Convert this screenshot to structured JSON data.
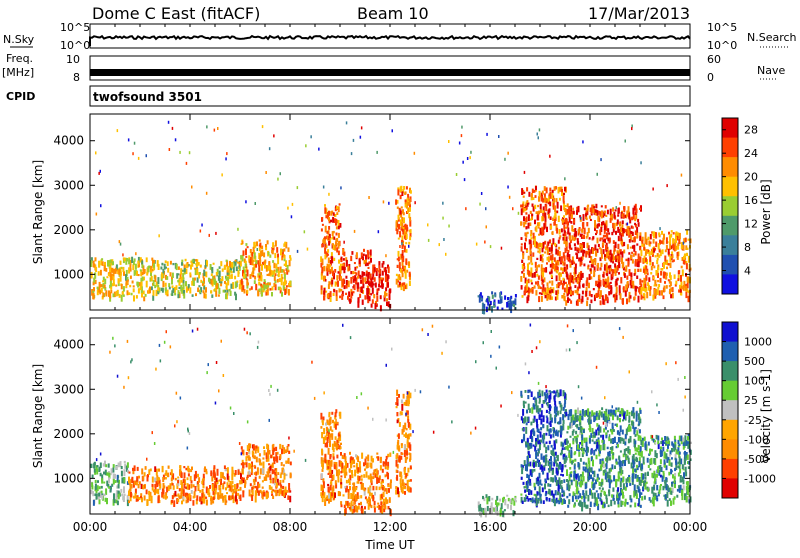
{
  "header": {
    "title": "Dome C East (fitACF)",
    "beam": "Beam 10",
    "date": "17/Mar/2013"
  },
  "strips": {
    "nsky_label": "N.Sky",
    "nsky_ticks": [
      "10^5",
      "10^0"
    ],
    "nsearch_label": "N.Search",
    "freq_label_1": "Freq.",
    "freq_label_2": "[MHz]",
    "freq_ticks": [
      "10",
      "8"
    ],
    "nave_label": "Nave",
    "nave_ticks": [
      "60",
      "0"
    ],
    "cpid_label": "CPID",
    "cpid_value": "twofsound 3501"
  },
  "colors": {
    "power_scale": [
      "#1010e0",
      "#2050b0",
      "#3a7f9a",
      "#4f9a6a",
      "#9acd32",
      "#ffc000",
      "#ff8c00",
      "#ff4000",
      "#e00000"
    ],
    "velocity_scale": [
      "#e00000",
      "#ff4000",
      "#ff8c00",
      "#ffa500",
      "#c0c0c0",
      "#66cc33",
      "#3a8f6a",
      "#1f5fb0",
      "#1010d0"
    ],
    "ground": "#b5b5b5"
  },
  "chart_data": [
    {
      "type": "heatmap",
      "name": "power",
      "ylabel": "Slant Range [km]",
      "yticks": [
        "1000",
        "2000",
        "3000",
        "4000"
      ],
      "ylim": [
        200,
        4600
      ],
      "colorbar_label": "Power [dB]",
      "colorbar_ticks": [
        "4",
        "8",
        "12",
        "16",
        "20",
        "24",
        "28"
      ],
      "colorbar_range": [
        0,
        30
      ],
      "xlim_hours": [
        0,
        24
      ],
      "regions": [
        {
          "t": [
            0.0,
            2.5
          ],
          "r": [
            500,
            1400
          ],
          "v": 18
        },
        {
          "t": [
            2.5,
            6.0
          ],
          "r": [
            550,
            1350
          ],
          "v": 16
        },
        {
          "t": [
            6.0,
            8.0
          ],
          "r": [
            600,
            1800
          ],
          "v": 20
        },
        {
          "t": [
            9.2,
            10.0
          ],
          "r": [
            500,
            2600
          ],
          "v": 24
        },
        {
          "t": [
            10.0,
            11.2
          ],
          "r": [
            400,
            1600
          ],
          "v": 27
        },
        {
          "t": [
            11.2,
            12.0
          ],
          "r": [
            300,
            1300
          ],
          "v": 28
        },
        {
          "t": [
            12.2,
            12.8
          ],
          "r": [
            700,
            3000
          ],
          "v": 22
        },
        {
          "t": [
            15.5,
            17.0
          ],
          "r": [
            250,
            650
          ],
          "v": 6
        },
        {
          "t": [
            17.2,
            19.0
          ],
          "r": [
            500,
            3000
          ],
          "v": 24
        },
        {
          "t": [
            19.0,
            22.0
          ],
          "r": [
            400,
            2600
          ],
          "v": 26
        },
        {
          "t": [
            22.0,
            24.0
          ],
          "r": [
            500,
            2000
          ],
          "v": 22
        }
      ]
    },
    {
      "type": "heatmap",
      "name": "velocity",
      "ylabel": "Slant Range [km]",
      "yticks": [
        "1000",
        "2000",
        "3000",
        "4000"
      ],
      "ylim": [
        200,
        4600
      ],
      "xlabel": "Time UT",
      "xticks": [
        "00:00",
        "04:00",
        "08:00",
        "12:00",
        "16:00",
        "20:00",
        "00:00"
      ],
      "xtick_hours": [
        0,
        4,
        8,
        12,
        16,
        20,
        24
      ],
      "colorbar_label": "Velocity [m s-1]",
      "colorbar_ticks": [
        "1000",
        "500",
        "100",
        "25",
        "-25",
        "-100",
        "-500",
        "-1000"
      ],
      "xlim_hours": [
        0,
        24
      ],
      "regions": [
        {
          "t": [
            0.0,
            1.5
          ],
          "r": [
            500,
            1400
          ],
          "v": 60
        },
        {
          "t": [
            1.5,
            6.0
          ],
          "r": [
            500,
            1300
          ],
          "v": -150
        },
        {
          "t": [
            6.0,
            8.0
          ],
          "r": [
            600,
            1800
          ],
          "v": -300
        },
        {
          "t": [
            9.2,
            10.0
          ],
          "r": [
            500,
            2600
          ],
          "v": -200
        },
        {
          "t": [
            10.0,
            12.0
          ],
          "r": [
            300,
            1600
          ],
          "v": -400
        },
        {
          "t": [
            12.2,
            12.8
          ],
          "r": [
            700,
            3000
          ],
          "v": -150
        },
        {
          "t": [
            15.5,
            17.0
          ],
          "r": [
            250,
            650
          ],
          "v": 60
        },
        {
          "t": [
            17.2,
            19.0
          ],
          "r": [
            500,
            3000
          ],
          "v": 700
        },
        {
          "t": [
            19.0,
            22.0
          ],
          "r": [
            400,
            2600
          ],
          "v": 200
        },
        {
          "t": [
            22.0,
            24.0
          ],
          "r": [
            500,
            2000
          ],
          "v": 150
        }
      ]
    }
  ]
}
